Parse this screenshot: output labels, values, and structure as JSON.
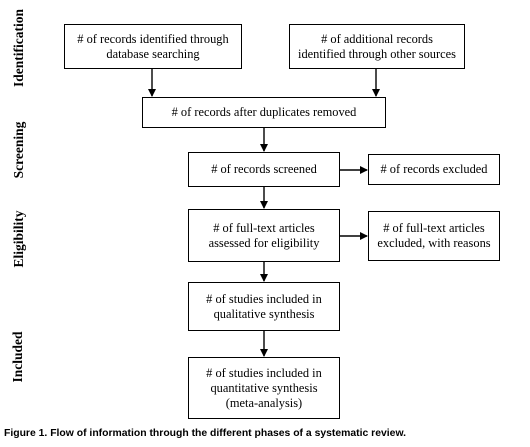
{
  "phases": {
    "identification": "Identification",
    "screening": "Screening",
    "eligibility": "Eligibility",
    "included": "Included"
  },
  "boxes": {
    "identified_db": [
      "# of records identified through",
      "database searching"
    ],
    "identified_other": [
      "# of additional records",
      "identified through other sources"
    ],
    "after_duplicates": [
      "# of records after duplicates removed"
    ],
    "screened": [
      "# of records screened"
    ],
    "excluded": [
      "# of records excluded"
    ],
    "fulltext_assessed": [
      "# of full-text articles",
      "assessed for eligibility"
    ],
    "fulltext_excluded": [
      "# of full-text articles",
      "excluded, with reasons"
    ],
    "qualitative": [
      "# of studies included in",
      "qualitative synthesis"
    ],
    "quantitative": [
      "# of studies included in",
      "quantitative synthesis",
      "(meta-analysis)"
    ]
  },
  "caption": "Figure 1. Flow of information through the different phases of a systematic review."
}
